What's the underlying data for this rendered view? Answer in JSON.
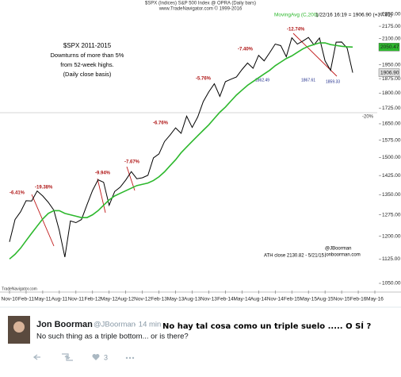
{
  "chart_data": {
    "type": "line",
    "header": "$SPX (Indices) S&P 500 Index @ OPRA (Daily bars)",
    "source": "www.TradeNavigator.com © 1999-2016",
    "quote": "1/22/16 16:19 = 1906.90 (+37.91)",
    "title": "$SPX 2011-2015",
    "subtitle": [
      "Downturns of more than 5%",
      "from 52-week highs.",
      "(Daily close basis)"
    ],
    "log_scale": true,
    "categories": [
      "Nov-10",
      null,
      null,
      "Feb-11",
      null,
      null,
      "May-11",
      null,
      null,
      "Aug-11",
      null,
      null,
      "Nov-11",
      null,
      null,
      "Feb-12",
      null,
      null,
      "May-12",
      null,
      null,
      "Aug-12",
      null,
      null,
      "Nov-12",
      null,
      null,
      "Feb-13",
      null,
      null,
      "May-13",
      null,
      null,
      "Aug-13",
      null,
      null,
      "Nov-13",
      null,
      null,
      "Feb-14",
      null,
      null,
      "May-14",
      null,
      null,
      "Aug-14",
      null,
      null,
      "Nov-14",
      null,
      null,
      "Feb-15",
      null,
      null,
      "May-15",
      null,
      null,
      "Aug-15",
      null,
      null,
      "Nov-15",
      null,
      null,
      "Feb-16",
      null,
      null,
      "May-16"
    ],
    "series": [
      {
        "name": "$SPX",
        "color": "#000000",
        "last_label": "1906.90",
        "values": [
          1181,
          1258,
          1286,
          1327,
          1326,
          1364,
          1345,
          1321,
          1292,
          1219,
          1131,
          1253,
          1247,
          1258,
          1312,
          1366,
          1408,
          1398,
          1310,
          1362,
          1379,
          1407,
          1441,
          1412,
          1416,
          1426,
          1498,
          1515,
          1569,
          1598,
          1631,
          1606,
          1686,
          1633,
          1682,
          1757,
          1806,
          1848,
          1783,
          1859,
          1872,
          1884,
          1924,
          1960,
          1931,
          2003,
          1972,
          2018,
          2068,
          2059,
          1995,
          2105,
          2068,
          2086,
          2107,
          2063,
          2104,
          1972,
          1920,
          2079,
          2080,
          2044,
          1907,
          null,
          null,
          null,
          null
        ]
      },
      {
        "name": "MovingAvg (C,200)",
        "color": "#2db82d",
        "last_label": "2050.47",
        "values": [
          1125,
          1140,
          1160,
          1185,
          1210,
          1235,
          1260,
          1280,
          1290,
          1290,
          1280,
          1275,
          1270,
          1265,
          1265,
          1275,
          1290,
          1310,
          1330,
          1345,
          1355,
          1365,
          1375,
          1385,
          1390,
          1395,
          1405,
          1420,
          1440,
          1465,
          1490,
          1520,
          1545,
          1570,
          1595,
          1620,
          1645,
          1675,
          1705,
          1730,
          1760,
          1790,
          1815,
          1840,
          1860,
          1880,
          1900,
          1920,
          1945,
          1965,
          1985,
          2000,
          2020,
          2040,
          2055,
          2065,
          2075,
          2075,
          2065,
          2060,
          2055,
          2052,
          2050.47,
          null,
          null,
          null,
          null
        ]
      }
    ],
    "ylim": [
      1050,
      2250
    ],
    "yticks": [
      {
        "value": 1050,
        "label": "1050.00"
      },
      {
        "value": 1125,
        "label": "1125.00"
      },
      {
        "value": 1200,
        "label": "1200.00"
      },
      {
        "value": 1275,
        "label": "1275.00"
      },
      {
        "value": 1350,
        "label": "1350.00"
      },
      {
        "value": 1425,
        "label": "1425.00"
      },
      {
        "value": 1500,
        "label": "1500.00"
      },
      {
        "value": 1575,
        "label": "1575.00"
      },
      {
        "value": 1650,
        "label": "1650.00"
      },
      {
        "value": 1725,
        "label": "1725.00"
      },
      {
        "value": 1800,
        "label": "1800.00"
      },
      {
        "value": 1875,
        "label": "1875.00"
      },
      {
        "value": 1950,
        "label": "1950.00"
      },
      {
        "value": 2100,
        "label": "2100.00"
      },
      {
        "value": 2175,
        "label": "2175.00"
      },
      {
        "value": 2250,
        "label": "2250.00"
      }
    ],
    "drawdowns": [
      "-6.41%",
      "-19.38%",
      "-9.94%",
      "-7.67%",
      "-6.76%",
      "-5.76%",
      "-7.40%",
      "-12.74%"
    ],
    "lows": [
      "1862.49",
      "1867.61",
      "1859.33"
    ],
    "threshold": "-20%",
    "ath": "ATH close 2130.82 - 5/21/15",
    "credit": [
      "@JBoorman",
      "jonboorman.com"
    ],
    "footer": "TradeNavigator.com"
  },
  "tweet": {
    "name": "Jon Boorman",
    "handle": "@JBoorman",
    "time": "· 14 min",
    "text": "No such thing as a triple bottom... or is there?",
    "likes": "3",
    "caption": "No hay tal cosa como un triple suelo ..... O SÍ ?"
  }
}
